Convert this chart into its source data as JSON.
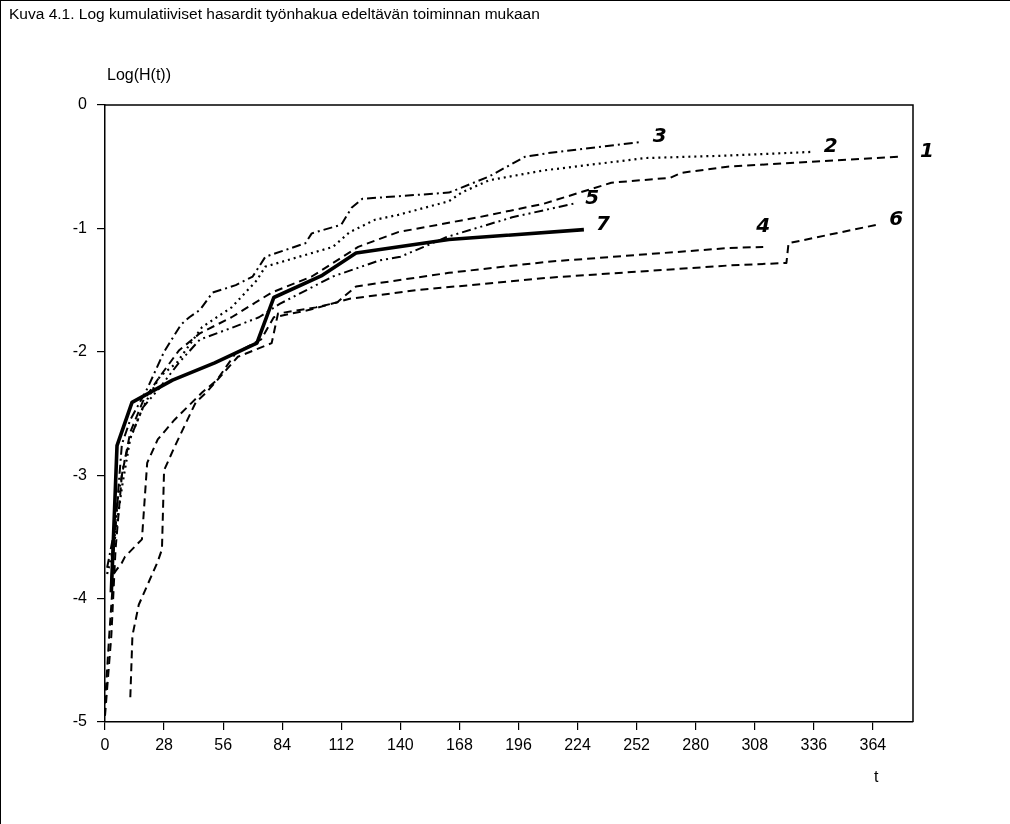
{
  "chart_data": {
    "type": "line",
    "title": "Kuva 4.1. Log kumulatiiviset hasardit työnhakua edeltävän toiminnan mukaan",
    "xlabel": "t",
    "ylabel": "Log(H(t))",
    "xlim": [
      0,
      383
    ],
    "xticks": [
      0,
      28,
      56,
      84,
      112,
      140,
      168,
      196,
      224,
      252,
      280,
      308,
      336,
      364
    ],
    "ylim": [
      -5,
      0
    ],
    "yticks": [
      0,
      -1,
      -2,
      -3,
      -4,
      -5
    ],
    "grid": false,
    "legend": false,
    "series": [
      {
        "name": "1",
        "color": "#000000",
        "line_style": "dashed",
        "x": [
          0,
          3,
          5,
          8,
          12,
          18,
          26,
          35,
          45,
          60,
          79,
          98,
          120,
          139,
          177,
          208,
          240,
          268,
          273,
          295,
          376
        ],
        "values": [
          -4.95,
          -4.3,
          -3.6,
          -3.0,
          -2.65,
          -2.4,
          -2.2,
          -1.99,
          -1.85,
          -1.72,
          -1.52,
          -1.39,
          -1.15,
          -1.03,
          -0.91,
          -0.8,
          -0.63,
          -0.59,
          -0.55,
          -0.5,
          -0.42
        ]
      },
      {
        "name": "2",
        "color": "#000000",
        "line_style": "dotted",
        "x": [
          1,
          4,
          8,
          12,
          18,
          26,
          34,
          46,
          60,
          72,
          76,
          98,
          108,
          116,
          128,
          139,
          163,
          169,
          182,
          208,
          256,
          295,
          335
        ],
        "values": [
          -3.8,
          -3.6,
          -3.1,
          -2.7,
          -2.45,
          -2.2,
          -2.09,
          -1.8,
          -1.64,
          -1.42,
          -1.31,
          -1.2,
          -1.15,
          -1.03,
          -0.93,
          -0.89,
          -0.78,
          -0.71,
          -0.61,
          -0.53,
          -0.43,
          -0.41,
          -0.38
        ]
      },
      {
        "name": "3",
        "color": "#000000",
        "line_style": "dashdot",
        "x": [
          1,
          5,
          8,
          12,
          20,
          28,
          36,
          40,
          45,
          51,
          62,
          70,
          76,
          95,
          98,
          112,
          117,
          122,
          163,
          169,
          182,
          199,
          210,
          254
        ],
        "values": [
          -3.75,
          -3.4,
          -2.75,
          -2.55,
          -2.3,
          -2.0,
          -1.78,
          -1.72,
          -1.66,
          -1.52,
          -1.46,
          -1.39,
          -1.23,
          -1.12,
          -1.04,
          -0.97,
          -0.83,
          -0.76,
          -0.71,
          -0.67,
          -0.58,
          -0.42,
          -0.39,
          -0.3
        ]
      },
      {
        "name": "4",
        "color": "#000000",
        "line_style": "dashed",
        "x": [
          12,
          13,
          16,
          25,
          27,
          28,
          33,
          43,
          48,
          63,
          79,
          82,
          100,
          110,
          119,
          163,
          210,
          295,
          312
        ],
        "values": [
          -4.8,
          -4.3,
          -4.05,
          -3.7,
          -3.6,
          -2.96,
          -2.77,
          -2.41,
          -2.33,
          -2.04,
          -1.93,
          -1.69,
          -1.64,
          -1.6,
          -1.47,
          -1.36,
          -1.27,
          -1.16,
          -1.15
        ]
      },
      {
        "name": "5",
        "color": "#000000",
        "line_style": "dashdotdot",
        "x": [
          3,
          6,
          9,
          12,
          18,
          26,
          35,
          45,
          61,
          73,
          83,
          108,
          130,
          140,
          162,
          193,
          222
        ],
        "values": [
          -3.85,
          -3.2,
          -2.9,
          -2.7,
          -2.45,
          -2.29,
          -2.09,
          -1.9,
          -1.8,
          -1.72,
          -1.61,
          -1.39,
          -1.26,
          -1.23,
          -1.07,
          -0.91,
          -0.8
        ]
      },
      {
        "name": "6",
        "color": "#000000",
        "line_style": "dashed",
        "x": [
          0,
          2,
          4,
          8,
          9.5,
          17.5,
          20,
          25,
          33,
          46,
          53,
          62,
          74,
          80,
          97,
          116,
          130,
          148,
          210,
          296,
          323,
          324,
          366
        ],
        "values": [
          -4.85,
          -4.3,
          -3.8,
          -3.71,
          -3.66,
          -3.52,
          -2.9,
          -2.71,
          -2.55,
          -2.33,
          -2.23,
          -2.01,
          -1.9,
          -1.72,
          -1.66,
          -1.57,
          -1.54,
          -1.5,
          -1.4,
          -1.3,
          -1.28,
          -1.12,
          -0.97
        ]
      },
      {
        "name": "7",
        "color": "#000000",
        "line_style": "solid",
        "x": [
          3,
          5.7,
          12.8,
          32,
          52,
          72,
          80,
          103,
          119,
          163,
          227
        ],
        "values": [
          -3.95,
          -2.76,
          -2.41,
          -2.23,
          -2.09,
          -1.93,
          -1.56,
          -1.38,
          -1.2,
          -1.09,
          -1.01
        ]
      }
    ]
  }
}
